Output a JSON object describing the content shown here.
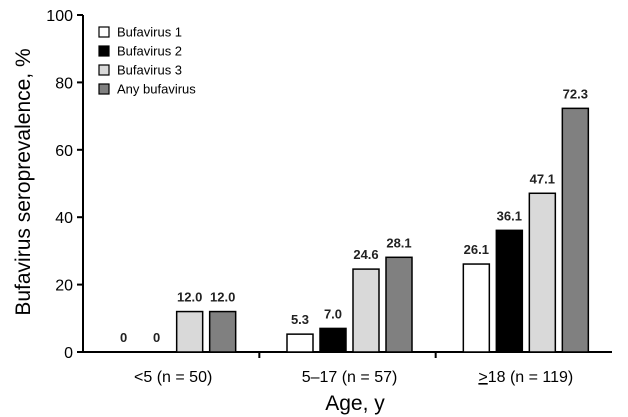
{
  "chart_data": {
    "type": "bar",
    "categories": [
      "<5 (n = 50)",
      "5–17 (n = 57)",
      ">18 (n = 119)"
    ],
    "categories_underlined_prefix": [
      "",
      "",
      ">"
    ],
    "series": [
      {
        "name": "Bufavirus 1",
        "values": [
          0,
          5.3,
          26.1
        ],
        "labels": [
          "0",
          "5.3",
          "26.1"
        ],
        "color": "#ffffff"
      },
      {
        "name": "Bufavirus 2",
        "values": [
          0,
          7.0,
          36.1
        ],
        "labels": [
          "0",
          "7.0",
          "36.1"
        ],
        "color": "#000000"
      },
      {
        "name": "Bufavirus 3",
        "values": [
          12.0,
          24.6,
          47.1
        ],
        "labels": [
          "12.0",
          "24.6",
          "47.1"
        ],
        "color": "#d9d9d9"
      },
      {
        "name": "Any bufavirus",
        "values": [
          12.0,
          28.1,
          72.3
        ],
        "labels": [
          "12.0",
          "28.1",
          "72.3"
        ],
        "color": "#808080"
      }
    ],
    "xlabel": "Age, y",
    "ylabel": "Bufavirus seroprevalence, %",
    "ylim": [
      0,
      100
    ],
    "yticks": [
      "0",
      "20",
      "40",
      "60",
      "80",
      "100"
    ],
    "grid": false,
    "legend_position": "top-left"
  }
}
